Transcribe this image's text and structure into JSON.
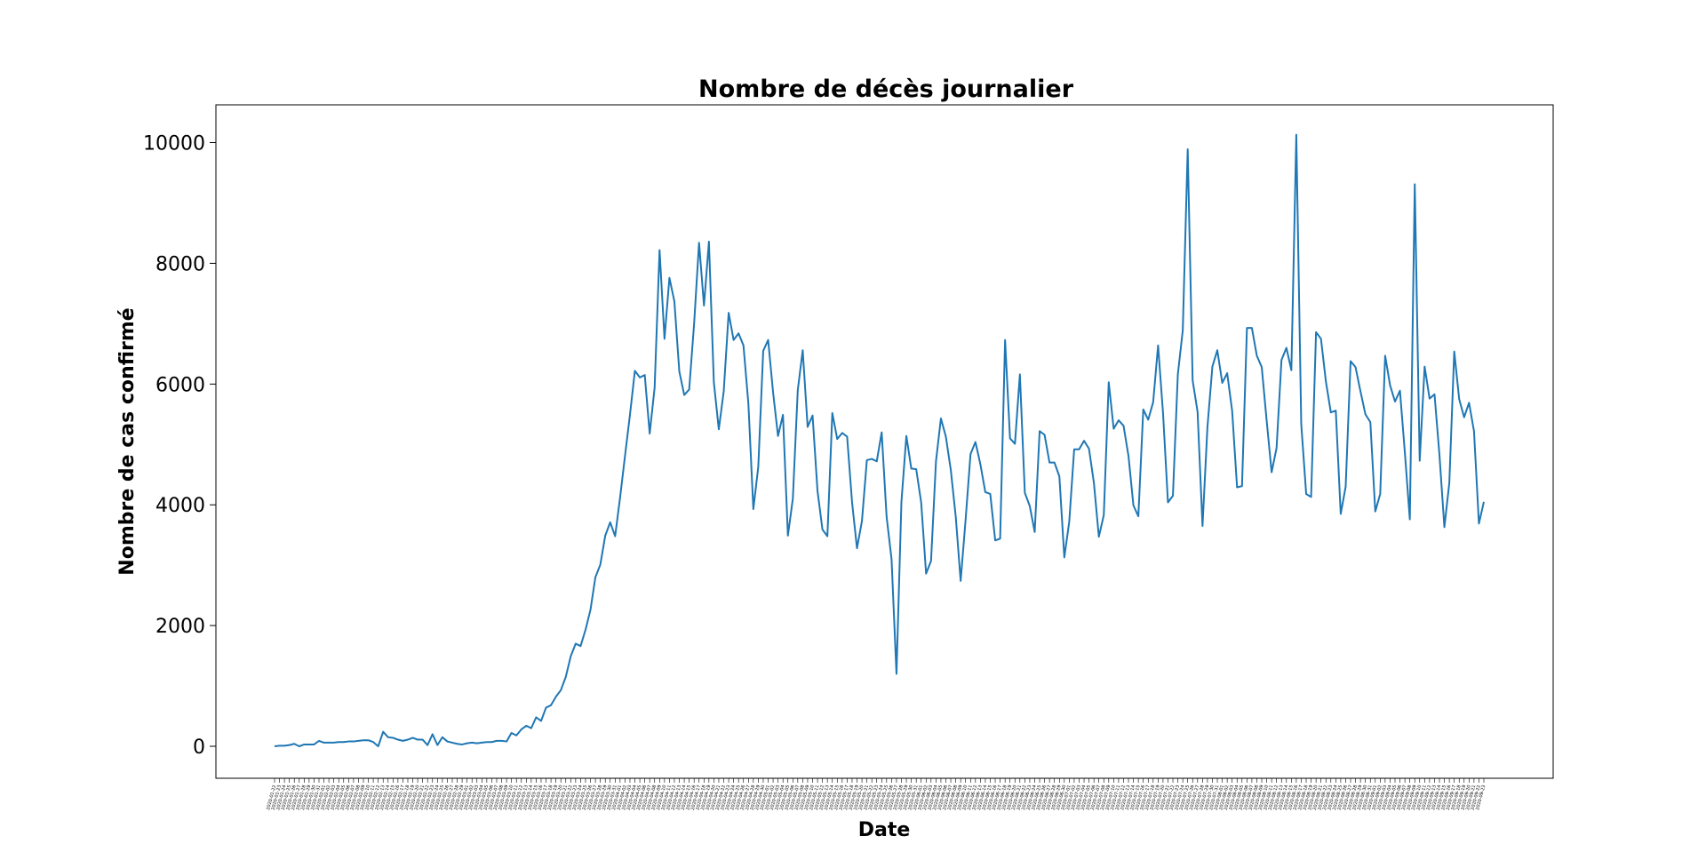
{
  "chart_data": {
    "type": "line",
    "title": "Nombre de décès journalier",
    "xlabel": "Date",
    "ylabel": "Nombre de cas confirmé",
    "ylim": [
      -500,
      10600
    ],
    "yticks": [
      0,
      2000,
      4000,
      6000,
      8000,
      10000
    ],
    "grid": false,
    "legend": "none",
    "color": "#1f77b4",
    "x_start_date": "2020-01-22",
    "series": [
      {
        "values": [
          0,
          10,
          10,
          20,
          40,
          0,
          30,
          30,
          30,
          90,
          60,
          60,
          60,
          70,
          70,
          80,
          80,
          90,
          100,
          100,
          70,
          0,
          240,
          150,
          140,
          110,
          90,
          110,
          140,
          110,
          110,
          20,
          200,
          20,
          150,
          80,
          60,
          40,
          30,
          50,
          60,
          50,
          60,
          70,
          70,
          90,
          90,
          80,
          220,
          180,
          280,
          340,
          300,
          480,
          420,
          640,
          680,
          820,
          930,
          1150,
          1490,
          1700,
          1660,
          1930,
          2260,
          2800,
          3010,
          3490,
          3710,
          3480,
          4120,
          4810,
          5490,
          6220,
          6110,
          6150,
          5180,
          5940,
          8220,
          6750,
          7760,
          7370,
          6210,
          5820,
          5910,
          7000,
          8340,
          7300,
          8360,
          6030,
          5250,
          5880,
          7180,
          6730,
          6840,
          6640,
          5670,
          3930,
          4630,
          6550,
          6730,
          5860,
          5140,
          5490,
          3490,
          4100,
          5900,
          6560,
          5290,
          5480,
          4230,
          3590,
          3480,
          5520,
          5090,
          5190,
          5130,
          4040,
          3280,
          3730,
          4740,
          4760,
          4720,
          5200,
          3800,
          3100,
          1200,
          4050,
          5140,
          4600,
          4590,
          4040,
          2860,
          3070,
          4720,
          5430,
          5130,
          4580,
          3810,
          2740,
          3750,
          4840,
          5040,
          4670,
          4210,
          4180,
          3410,
          3440,
          6730,
          5100,
          5010,
          6160,
          4200,
          3980,
          3550,
          5220,
          5160,
          4700,
          4700,
          4470,
          3130,
          3720,
          4920,
          4920,
          5060,
          4930,
          4360,
          3470,
          3830,
          6030,
          5260,
          5400,
          5310,
          4810,
          3990,
          3810,
          5580,
          5410,
          5700,
          6640,
          5520,
          4040,
          4150,
          6160,
          6890,
          9890,
          6060,
          5540,
          3650,
          5290,
          6290,
          6560,
          6020,
          6180,
          5560,
          4290,
          4310,
          6930,
          6930,
          6470,
          6280,
          5390,
          4540,
          4940,
          6400,
          6600,
          6230,
          10130,
          5340,
          4180,
          4130,
          6860,
          6750,
          6040,
          5530,
          5560,
          3850,
          4300,
          6380,
          6280,
          5880,
          5500,
          5370,
          3890,
          4180,
          6470,
          5980,
          5710,
          5890,
          4860,
          3760,
          9310,
          4730,
          6290,
          5760,
          5830,
          4830,
          3630,
          4360,
          6540,
          5750,
          5450,
          5690,
          5220,
          3690,
          4050
        ]
      }
    ]
  }
}
